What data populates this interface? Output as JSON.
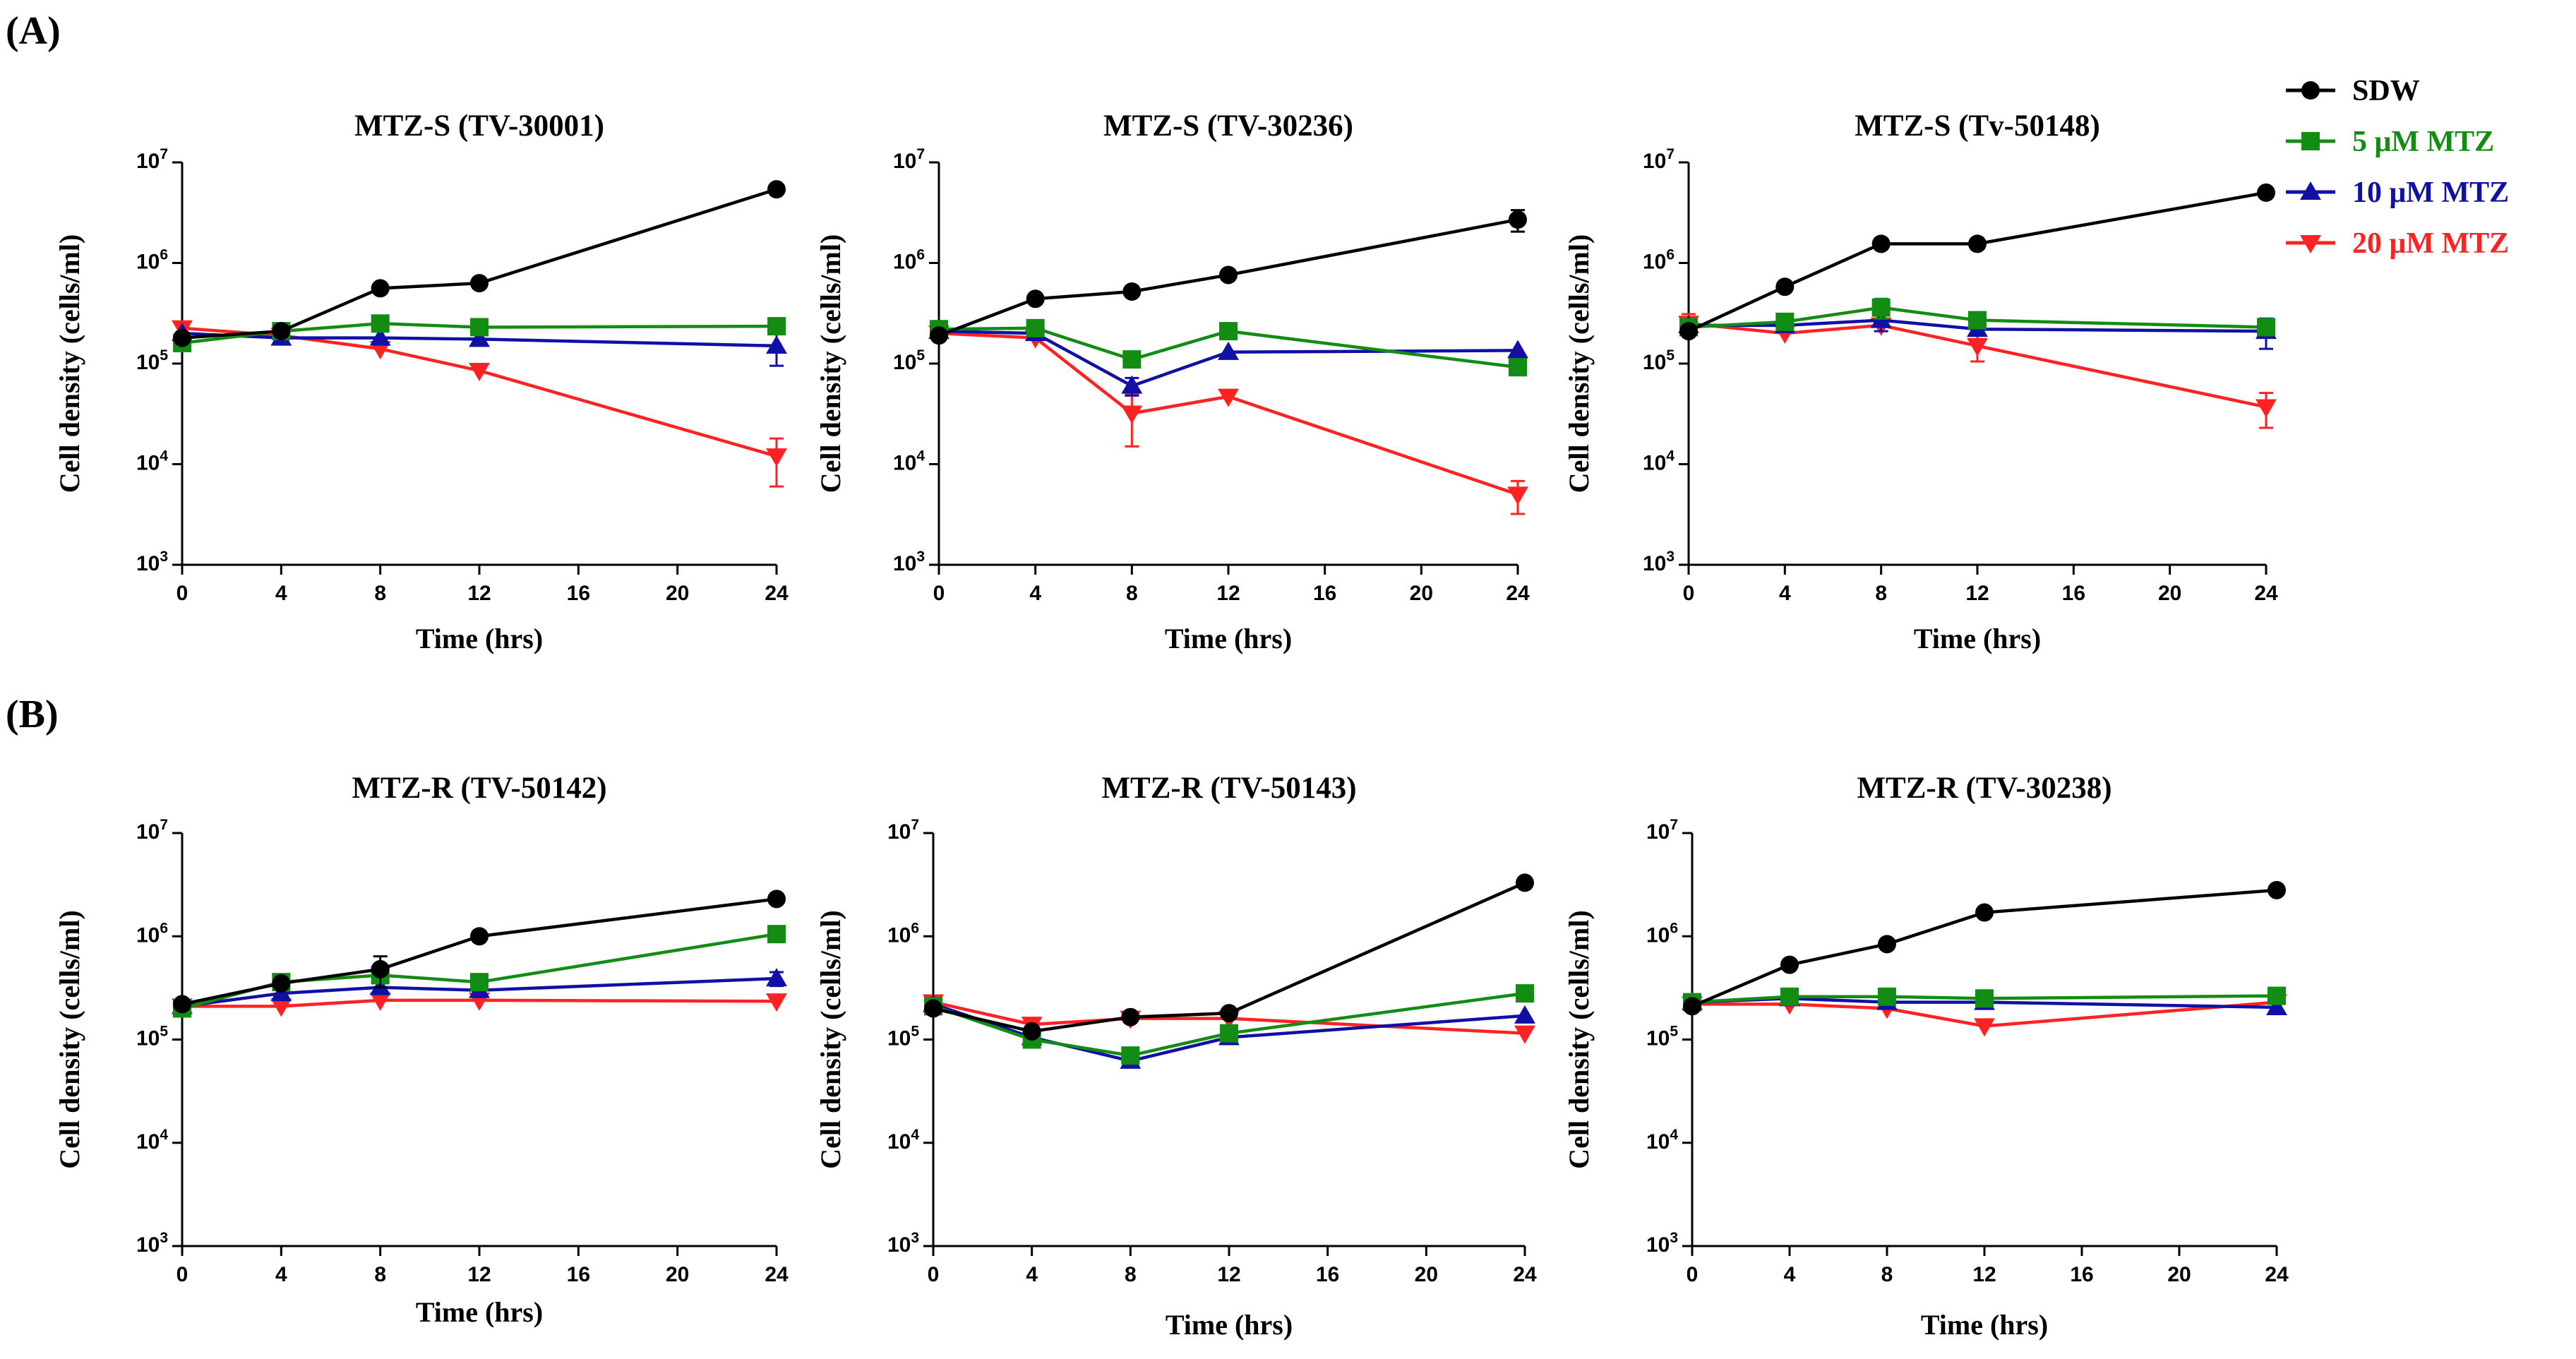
{
  "panel_labels": {
    "A": "(A)",
    "B": "(B)"
  },
  "legend": [
    {
      "label": "SDW",
      "color": "#000000",
      "marker": "circle"
    },
    {
      "label": "5 μM MTZ",
      "color": "#138c13",
      "marker": "square"
    },
    {
      "label": "10 μM MTZ",
      "color": "#1010a6",
      "marker": "triangle-up"
    },
    {
      "label": "20 μM MTZ",
      "color": "#ff2222",
      "marker": "triangle-down"
    }
  ],
  "chart_data": [
    {
      "type": "line",
      "panel": "A",
      "title": "MTZ-S (TV-30001)",
      "xlabel": "Time (hrs)",
      "ylabel": "Cell density (cells/ml)",
      "x": [
        0,
        4,
        8,
        12,
        24
      ],
      "xticks": [
        0,
        4,
        8,
        12,
        16,
        20,
        24
      ],
      "xlim": [
        0,
        24
      ],
      "yscale": "log",
      "ylim": [
        1000,
        10000000
      ],
      "series": [
        {
          "name": "SDW",
          "values": [
            180000,
            210000,
            560000,
            630000,
            5400000
          ]
        },
        {
          "name": "5 μM MTZ",
          "values": [
            160000,
            210000,
            250000,
            230000,
            235000
          ]
        },
        {
          "name": "10 μM MTZ",
          "values": [
            200000,
            180000,
            180000,
            175000,
            150000
          ],
          "errors": [
            0,
            0,
            0,
            0,
            55000
          ]
        },
        {
          "name": "20 μM MTZ",
          "values": [
            225000,
            190000,
            140000,
            85000,
            12000
          ],
          "errors": [
            0,
            0,
            0,
            0,
            6000
          ]
        }
      ]
    },
    {
      "type": "line",
      "panel": "A",
      "title": "MTZ-S (TV-30236)",
      "xlabel": "Time (hrs)",
      "ylabel": "Cell density (cells/ml)",
      "x": [
        0,
        4,
        8,
        12,
        24
      ],
      "xticks": [
        0,
        4,
        8,
        12,
        16,
        20,
        24
      ],
      "xlim": [
        0,
        24
      ],
      "yscale": "log",
      "ylim": [
        1000,
        10000000
      ],
      "series": [
        {
          "name": "SDW",
          "values": [
            190000,
            440000,
            520000,
            760000,
            2700000
          ],
          "errors": [
            0,
            0,
            0,
            0,
            650000
          ]
        },
        {
          "name": "5 μM MTZ",
          "values": [
            220000,
            225000,
            110000,
            210000,
            92000
          ]
        },
        {
          "name": "10 μM MTZ",
          "values": [
            210000,
            200000,
            60000,
            130000,
            135000
          ],
          "errors": [
            0,
            0,
            12000,
            0,
            0
          ]
        },
        {
          "name": "20 μM MTZ",
          "values": [
            200000,
            180000,
            32000,
            47000,
            5000
          ],
          "errors": [
            0,
            0,
            17000,
            0,
            1800
          ]
        }
      ]
    },
    {
      "type": "line",
      "panel": "A",
      "title": "MTZ-S (Tv-50148)",
      "xlabel": "Time (hrs)",
      "ylabel": "Cell density (cells/ml)",
      "x": [
        0,
        4,
        8,
        12,
        24
      ],
      "xticks": [
        0,
        4,
        8,
        12,
        16,
        20,
        24
      ],
      "xlim": [
        0,
        24
      ],
      "yscale": "log",
      "ylim": [
        1000,
        10000000
      ],
      "series": [
        {
          "name": "SDW",
          "values": [
            210000,
            580000,
            1550000,
            1550000,
            5000000
          ]
        },
        {
          "name": "5 μM MTZ",
          "values": [
            230000,
            260000,
            360000,
            270000,
            230000
          ],
          "errors": [
            0,
            0,
            80000,
            0,
            0
          ]
        },
        {
          "name": "10 μM MTZ",
          "values": [
            240000,
            240000,
            270000,
            220000,
            210000
          ],
          "errors": [
            0,
            0,
            60000,
            0,
            70000
          ]
        },
        {
          "name": "20 μM MTZ",
          "values": [
            250000,
            200000,
            240000,
            150000,
            37000
          ],
          "errors": [
            60000,
            0,
            0,
            45000,
            14000
          ]
        }
      ]
    },
    {
      "type": "line",
      "panel": "B",
      "title": "MTZ-R (TV-50142)",
      "xlabel": "Time (hrs)",
      "ylabel": "Cell density (cells/ml)",
      "x": [
        0,
        4,
        8,
        12,
        24
      ],
      "xticks": [
        0,
        4,
        8,
        12,
        16,
        20,
        24
      ],
      "xlim": [
        0,
        24
      ],
      "yscale": "log",
      "ylim": [
        1000,
        10000000
      ],
      "series": [
        {
          "name": "SDW",
          "values": [
            220000,
            350000,
            480000,
            1000000,
            2300000
          ],
          "errors": [
            0,
            0,
            160000,
            0,
            0
          ]
        },
        {
          "name": "5 μM MTZ",
          "values": [
            200000,
            360000,
            420000,
            360000,
            1050000
          ]
        },
        {
          "name": "10 μM MTZ",
          "values": [
            210000,
            280000,
            320000,
            300000,
            390000
          ],
          "errors": [
            0,
            0,
            0,
            0,
            60000
          ]
        },
        {
          "name": "20 μM MTZ",
          "values": [
            210000,
            210000,
            240000,
            240000,
            235000
          ]
        }
      ]
    },
    {
      "type": "line",
      "panel": "B",
      "title": "MTZ-R (TV-50143)",
      "xlabel": "Time (hrs)",
      "ylabel": "Cell density (cells/ml)",
      "x": [
        0,
        4,
        8,
        12,
        24
      ],
      "xticks": [
        0,
        4,
        8,
        12,
        16,
        20,
        24
      ],
      "xlim": [
        0,
        24
      ],
      "yscale": "log",
      "ylim": [
        1000,
        10000000
      ],
      "series": [
        {
          "name": "SDW",
          "values": [
            200000,
            120000,
            165000,
            180000,
            3300000
          ]
        },
        {
          "name": "5 μM MTZ",
          "values": [
            210000,
            100000,
            70000,
            115000,
            280000
          ]
        },
        {
          "name": "10 μM MTZ",
          "values": [
            220000,
            105000,
            62000,
            105000,
            170000
          ]
        },
        {
          "name": "20 μM MTZ",
          "values": [
            230000,
            140000,
            160000,
            160000,
            115000
          ]
        }
      ]
    },
    {
      "type": "line",
      "panel": "B",
      "title": "MTZ-R (TV-30238)",
      "xlabel": "Time (hrs)",
      "ylabel": "Cell density (cells/ml)",
      "x": [
        0,
        4,
        8,
        12,
        24
      ],
      "xticks": [
        0,
        4,
        8,
        12,
        16,
        20,
        24
      ],
      "xlim": [
        0,
        24
      ],
      "yscale": "log",
      "ylim": [
        1000,
        10000000
      ],
      "series": [
        {
          "name": "SDW",
          "values": [
            210000,
            530000,
            840000,
            1700000,
            2800000
          ]
        },
        {
          "name": "5 μM MTZ",
          "values": [
            230000,
            260000,
            260000,
            250000,
            265000
          ]
        },
        {
          "name": "10 μM MTZ",
          "values": [
            230000,
            250000,
            230000,
            230000,
            205000
          ]
        },
        {
          "name": "20 μM MTZ",
          "values": [
            220000,
            220000,
            200000,
            135000,
            230000
          ]
        }
      ]
    }
  ]
}
